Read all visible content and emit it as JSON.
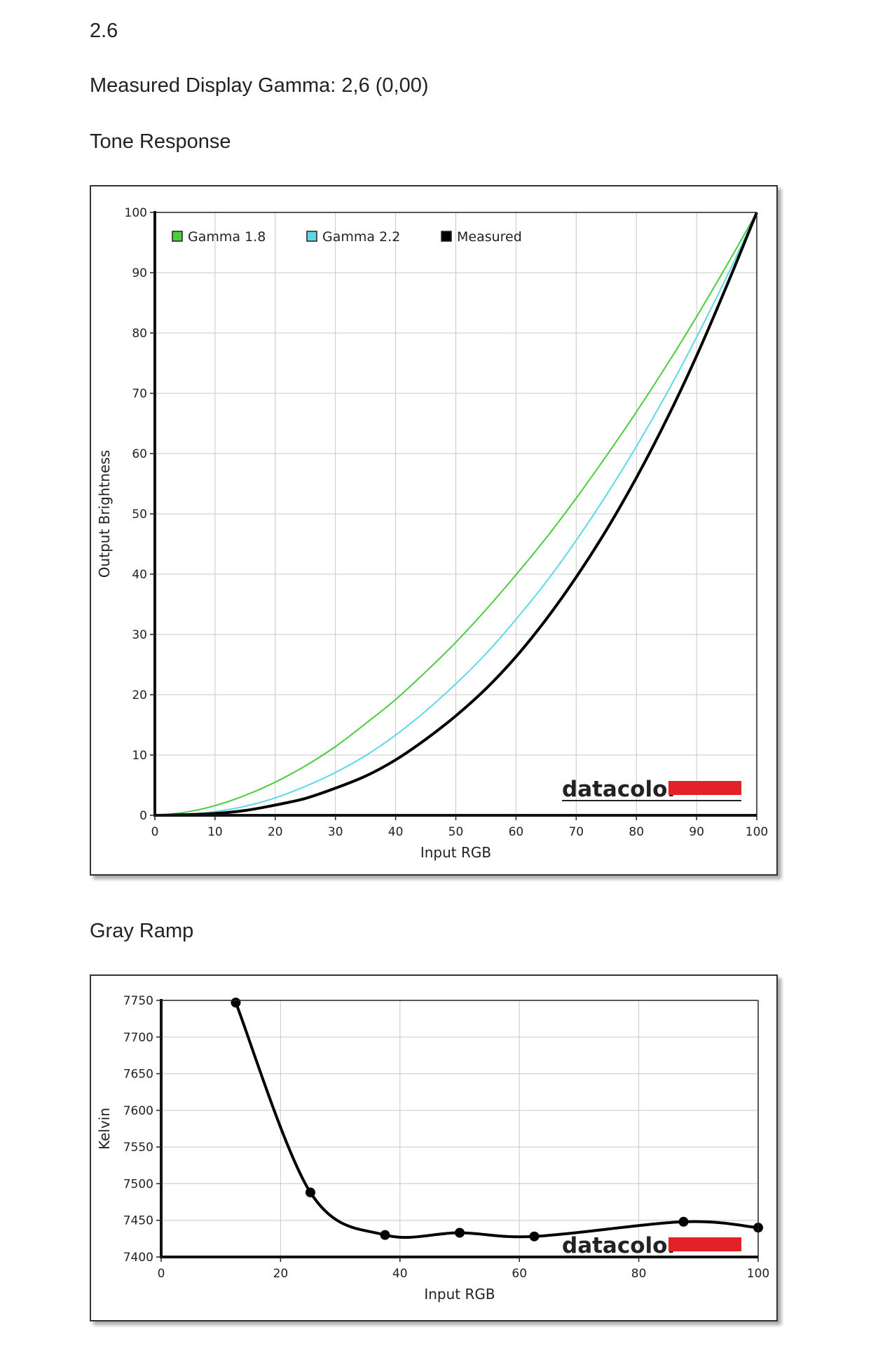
{
  "page": {
    "heading_value": "2.6",
    "measured_gamma_text": "Measured Display Gamma: 2,6 (0,00)",
    "tone_section_title": "Tone Response",
    "gray_section_title": "Gray Ramp",
    "logo_text": "datacolor"
  },
  "chart_data": [
    {
      "type": "line",
      "title": "",
      "xlabel": "Input RGB",
      "ylabel": "Output Brightness",
      "xlim": [
        0,
        100
      ],
      "ylim": [
        0,
        100
      ],
      "x_ticks": [
        0,
        10,
        20,
        30,
        40,
        50,
        60,
        70,
        80,
        90,
        100
      ],
      "y_ticks": [
        0,
        10,
        20,
        30,
        40,
        50,
        60,
        70,
        80,
        90,
        100
      ],
      "grid": true,
      "legend_position": "top-left",
      "series": [
        {
          "name": "Gamma 1.8",
          "color": "#4ccc3e",
          "x": [
            0,
            5,
            10,
            15,
            20,
            25,
            30,
            35,
            40,
            45,
            50,
            55,
            60,
            65,
            70,
            75,
            80,
            85,
            90,
            95,
            100
          ],
          "y": [
            0,
            0.5,
            1.6,
            3.3,
            5.5,
            8.2,
            11.4,
            15.2,
            19.2,
            23.8,
            28.7,
            34.1,
            39.9,
            46.0,
            52.6,
            59.6,
            66.9,
            74.6,
            82.7,
            91.2,
            100
          ]
        },
        {
          "name": "Gamma 2.2",
          "color": "#5cd8e6",
          "x": [
            0,
            5,
            10,
            15,
            20,
            25,
            30,
            35,
            40,
            45,
            50,
            55,
            60,
            65,
            70,
            75,
            80,
            85,
            90,
            95,
            100
          ],
          "y": [
            0,
            0.1,
            0.6,
            1.5,
            2.9,
            4.8,
            7.1,
            9.9,
            13.3,
            17.3,
            21.8,
            26.8,
            32.5,
            38.7,
            45.6,
            53.1,
            61.2,
            69.9,
            79.3,
            89.3,
            100
          ]
        },
        {
          "name": "Measured",
          "color": "#000000",
          "x": [
            0,
            5,
            10,
            15,
            20,
            25,
            30,
            35,
            40,
            45,
            50,
            55,
            60,
            65,
            70,
            75,
            80,
            85,
            90,
            95,
            100
          ],
          "y": [
            0,
            0.1,
            0.3,
            0.8,
            1.7,
            2.8,
            4.5,
            6.5,
            9.2,
            12.6,
            16.5,
            21.0,
            26.3,
            32.5,
            39.5,
            47.3,
            56.0,
            65.6,
            76.2,
            87.8,
            100
          ]
        }
      ]
    },
    {
      "type": "line",
      "title": "",
      "xlabel": "Input RGB",
      "ylabel": "Kelvin",
      "xlim": [
        0,
        100
      ],
      "ylim": [
        7400,
        7750
      ],
      "x_ticks": [
        0,
        20,
        40,
        60,
        80,
        100
      ],
      "y_ticks": [
        7400,
        7450,
        7500,
        7550,
        7600,
        7650,
        7700,
        7750
      ],
      "grid": true,
      "series": [
        {
          "name": "",
          "color": "#000000",
          "x": [
            12.5,
            25,
            37.5,
            50,
            62.5,
            87.5,
            100
          ],
          "y": [
            7747,
            7488,
            7430,
            7433,
            7428,
            7448,
            7440
          ]
        }
      ]
    }
  ]
}
